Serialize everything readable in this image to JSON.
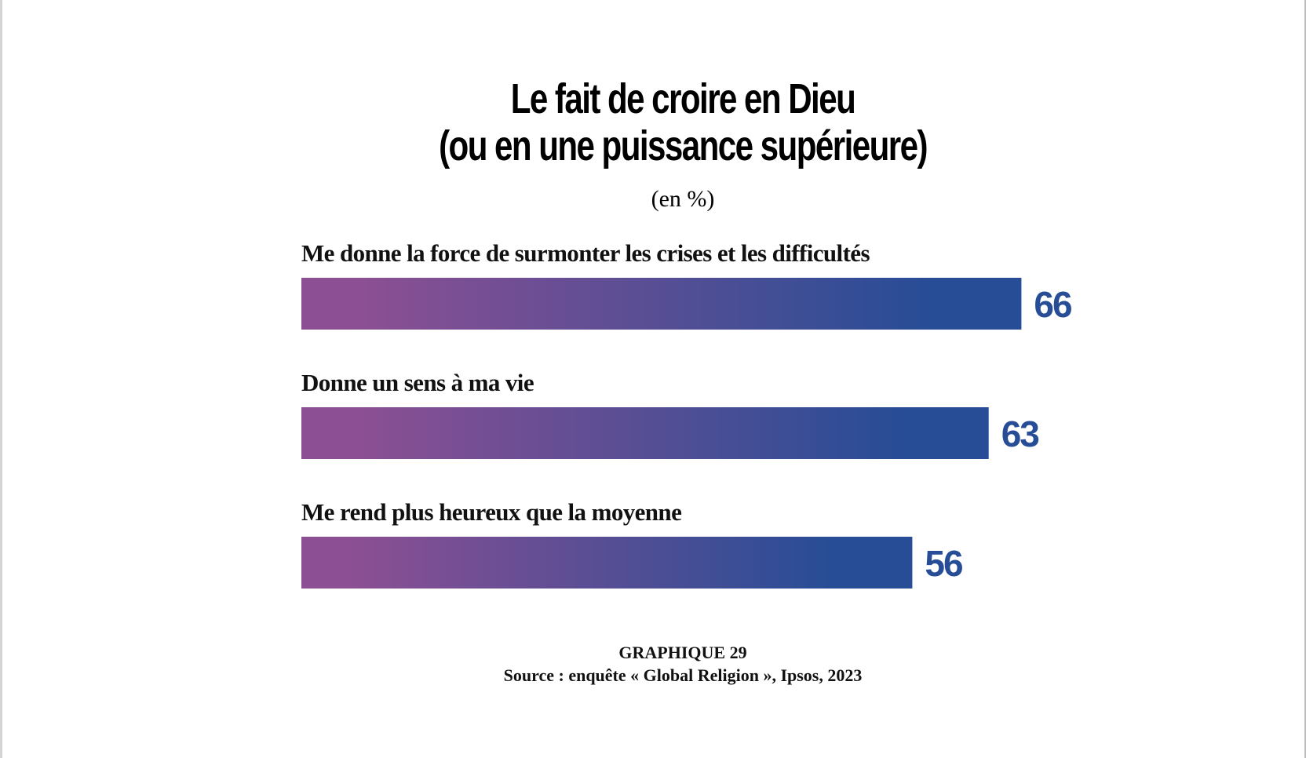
{
  "title_lines": [
    "Le fait de croire en Dieu",
    "(ou en une puissance supérieure)"
  ],
  "unit": "(en %)",
  "caption": {
    "label": "GRAPHIQUE 29",
    "source": "Source : enquête « Global Religion », Ipsos, 2023"
  },
  "colors": {
    "bar_start": "#8c4f93",
    "bar_end": "#264d96",
    "value_text": "#264d96"
  },
  "chart_data": {
    "type": "bar",
    "orientation": "horizontal",
    "title": "Le fait de croire en Dieu (ou en une puissance supérieure)",
    "subtitle": "(en %)",
    "categories": [
      "Me donne la force de surmonter les crises et les difficultés",
      "Donne un sens à ma vie",
      "Me rend plus heureux que la moyenne"
    ],
    "values": [
      66,
      63,
      56
    ],
    "xlim": [
      0,
      100
    ],
    "grid": false,
    "legend": "none"
  }
}
